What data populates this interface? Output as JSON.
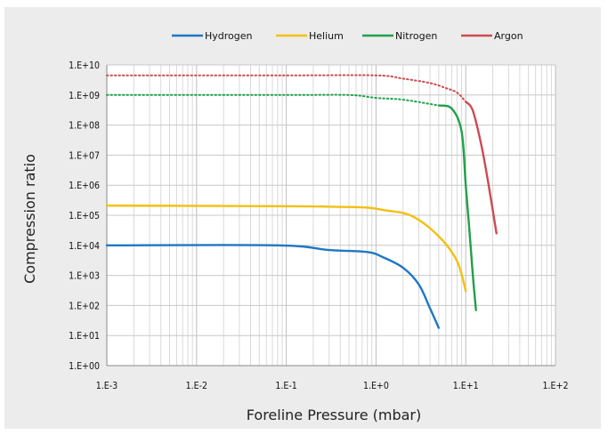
{
  "chart_data": {
    "type": "line",
    "xlabel": "Foreline Pressure (mbar)",
    "ylabel": "Compression ratio",
    "x_scale": "log",
    "y_scale": "log",
    "xlim": [
      0.001,
      100
    ],
    "ylim": [
      1,
      10000000000
    ],
    "x_ticks": [
      "1.E-3",
      "1.E-2",
      "1.E-1",
      "1.E+0",
      "1.E+1",
      "1.E+2"
    ],
    "y_ticks": [
      "1.E+00",
      "1.E+01",
      "1.E+02",
      "1.E+03",
      "1.E+04",
      "1.E+05",
      "1.E+06",
      "1.E+07",
      "1.E+08",
      "1.E+09",
      "1.E+10"
    ],
    "grid": true,
    "legend_position": "top",
    "series": [
      {
        "name": "Hydrogen",
        "color": "#1f77c4",
        "x": [
          0.001,
          0.08,
          0.3,
          0.8,
          1.2,
          2.0,
          3.0,
          4.0,
          5.0
        ],
        "y": [
          10000,
          10000,
          7000,
          6000,
          4000,
          1800,
          500,
          80,
          18
        ]
      },
      {
        "name": "Helium",
        "color": "#f2c010",
        "x": [
          0.001,
          0.1,
          0.4,
          0.8,
          1.2,
          2.5,
          5.0,
          8.0,
          10.0
        ],
        "y": [
          210000,
          200000,
          190000,
          180000,
          150000,
          95000,
          20000,
          3000,
          300
        ]
      },
      {
        "name": "Nitrogen",
        "color": "#21a04b",
        "x": [
          0.001,
          0.1,
          0.5,
          1.0,
          2.0,
          5.0,
          7.0,
          9.0,
          10.0,
          11.0,
          12.0,
          13.0
        ],
        "y": [
          1000000000,
          1000000000,
          1000000000,
          800000000,
          700000000,
          450000000,
          350000000,
          60000000,
          1000000,
          30000,
          1000,
          70
        ],
        "dotted_until": 5.0
      },
      {
        "name": "Argon",
        "color": "#cc4b50",
        "x": [
          0.001,
          0.1,
          1.0,
          2.0,
          4.0,
          6.0,
          8.0,
          10.0,
          12.0,
          15.0,
          18.0,
          22.0
        ],
        "y": [
          4500000000,
          4500000000,
          4500000000,
          3500000000,
          2500000000,
          1700000000,
          1200000000,
          600000000,
          300000000,
          20000000,
          1000000,
          25000
        ],
        "dotted_until": 10.0
      }
    ]
  }
}
